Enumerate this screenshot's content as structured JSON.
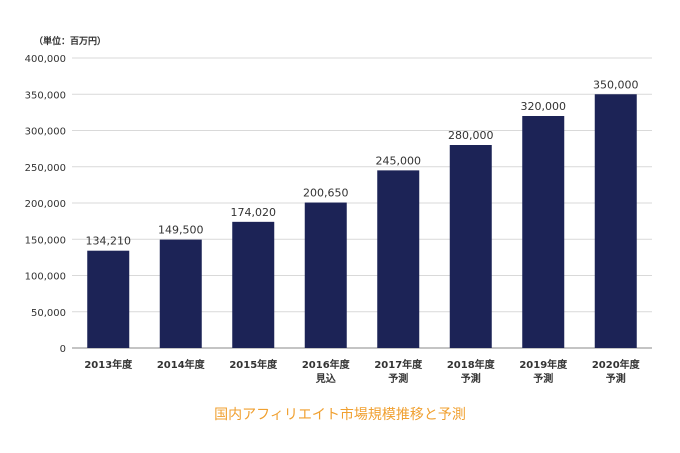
{
  "chart_data": {
    "type": "bar",
    "unit_label": "（単位：百万円）",
    "categories": [
      [
        "2013年度"
      ],
      [
        "2014年度"
      ],
      [
        "2015年度"
      ],
      [
        "2016年度",
        "見込"
      ],
      [
        "2017年度",
        "予測"
      ],
      [
        "2018年度",
        "予測"
      ],
      [
        "2019年度",
        "予測"
      ],
      [
        "2020年度",
        "予測"
      ]
    ],
    "values": [
      134210,
      149500,
      174020,
      200650,
      245000,
      280000,
      320000,
      350000
    ],
    "value_labels": [
      "134,210",
      "149,500",
      "174,020",
      "200,650",
      "245,000",
      "280,000",
      "320,000",
      "350,000"
    ],
    "yticks": [
      0,
      50000,
      100000,
      150000,
      200000,
      250000,
      300000,
      350000,
      400000
    ],
    "ytick_labels": [
      "0",
      "50,000",
      "100,000",
      "150,000",
      "200,000",
      "250,000",
      "300,000",
      "350,000",
      "400,000"
    ],
    "ylim": [
      0,
      400000
    ],
    "grid": true,
    "bar_color": "#1c2356",
    "caption": "国内アフィリエイト市場規模推移と予測"
  }
}
